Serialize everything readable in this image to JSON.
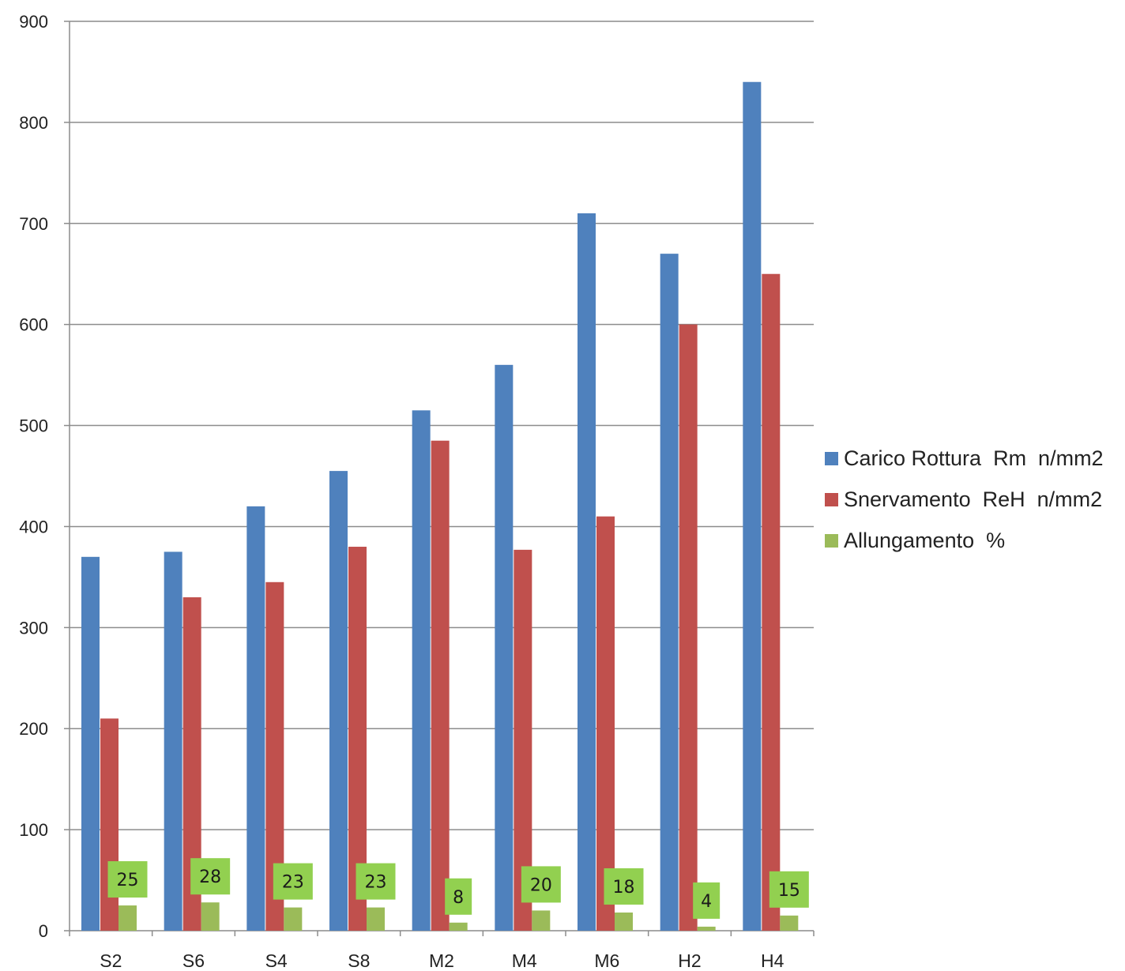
{
  "chart_data": {
    "type": "bar",
    "title": "",
    "xlabel": "",
    "ylabel": "",
    "ylim": [
      0,
      900
    ],
    "yticks": [
      0,
      100,
      200,
      300,
      400,
      500,
      600,
      700,
      800,
      900
    ],
    "grid": true,
    "legend_position": "right",
    "categories": [
      "S2",
      "S6",
      "S4",
      "S8",
      "M2",
      "M4",
      "M6",
      "H2",
      "H4"
    ],
    "series": [
      {
        "name": "Carico Rottura  Rm  n/mm2",
        "color": "#4F81BD",
        "values": [
          370,
          375,
          420,
          455,
          515,
          560,
          710,
          670,
          840
        ]
      },
      {
        "name": "Snervamento  ReH  n/mm2",
        "color": "#C0504D",
        "values": [
          210,
          330,
          345,
          380,
          485,
          377,
          410,
          600,
          650
        ]
      },
      {
        "name": "Allungamento  %",
        "color": "#9BBB59",
        "values": [
          25,
          28,
          23,
          23,
          8,
          20,
          18,
          4,
          15
        ],
        "data_labels": [
          "25",
          "28",
          "23",
          "23",
          "8",
          "20",
          "18",
          "4",
          "15"
        ],
        "label_box_color": "#92D050"
      }
    ]
  }
}
